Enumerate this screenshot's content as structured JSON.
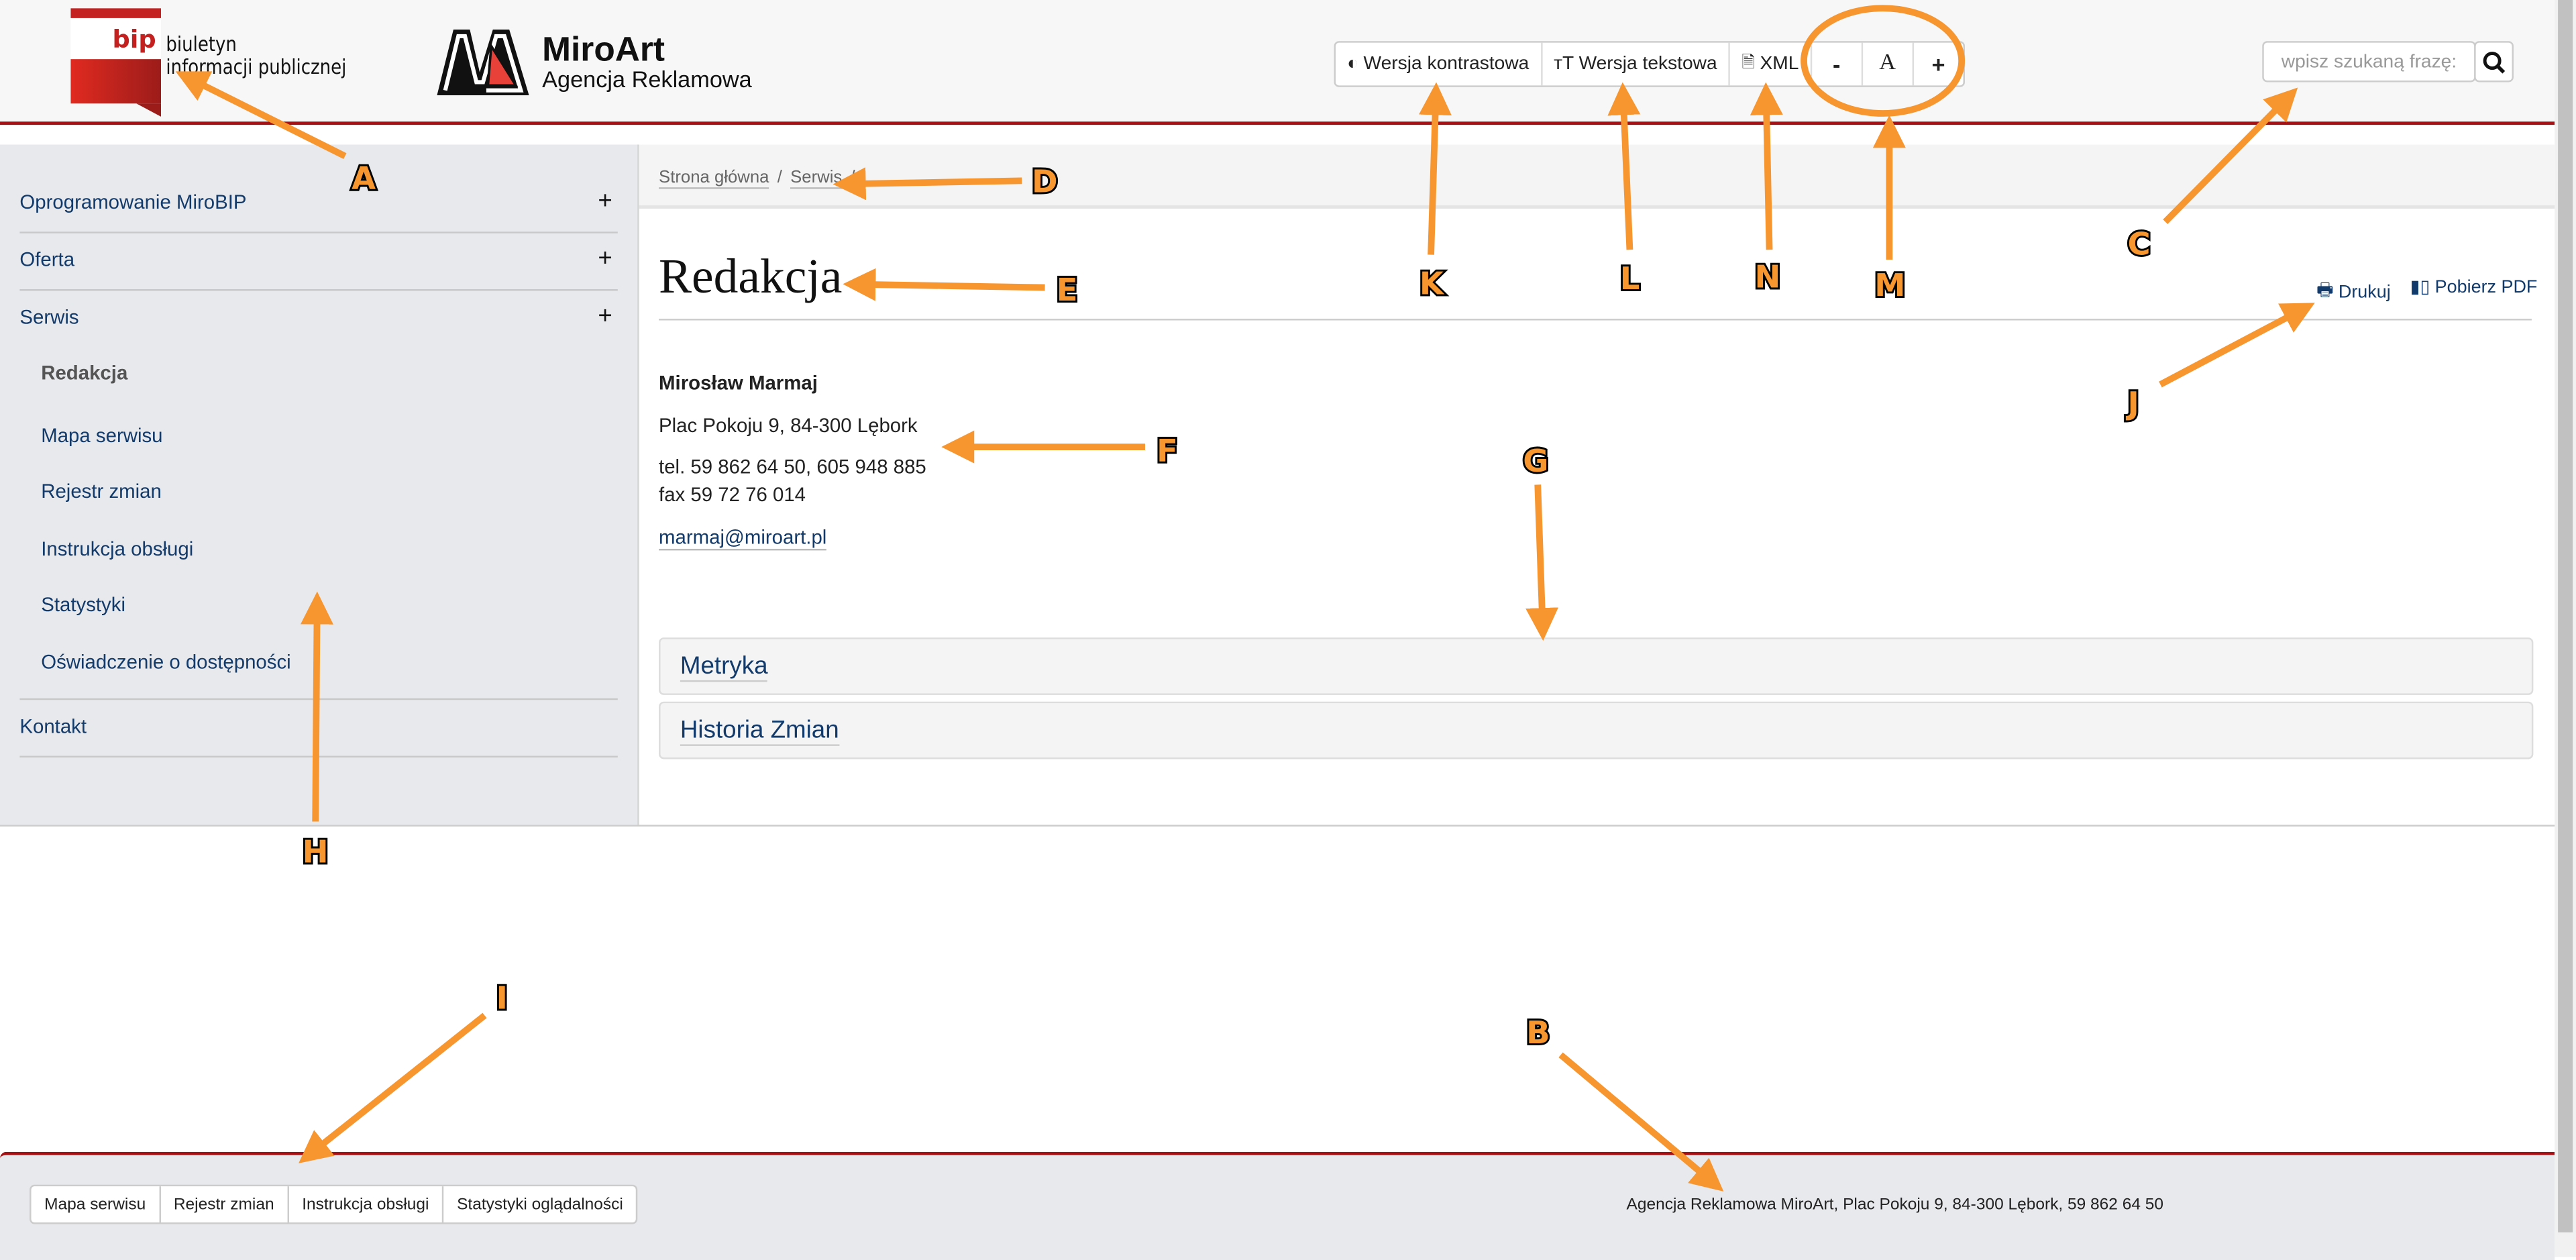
{
  "header": {
    "bip_line1": "biuletyn",
    "bip_line2": "informacji publicznej",
    "bip_logo": "bip",
    "brand_name": "MiroArt",
    "brand_sub": "Agencja Reklamowa",
    "toolbar": {
      "contrast": "Wersja kontrastowa",
      "text": "Wersja tekstowa",
      "xml": "XML",
      "font_minus": "-",
      "font_normal": "A",
      "font_plus": "+"
    },
    "search": {
      "placeholder": "wpisz szukaną frazę:"
    }
  },
  "sidebar": {
    "items": [
      {
        "label": "Oprogramowanie MiroBIP",
        "expand": "+"
      },
      {
        "label": "Oferta",
        "expand": "+"
      },
      {
        "label": "Serwis",
        "expand": "+"
      },
      {
        "label": "Kontakt"
      }
    ],
    "sub_items": [
      {
        "label": "Redakcja",
        "active": true
      },
      {
        "label": "Mapa serwisu"
      },
      {
        "label": "Rejestr zmian"
      },
      {
        "label": "Instrukcja obsługi"
      },
      {
        "label": "Statystyki"
      },
      {
        "label": "Oświadczenie o dostępności"
      }
    ]
  },
  "breadcrumb": {
    "items": [
      "Strona główna",
      "Serwis"
    ],
    "separator": "/"
  },
  "main": {
    "title": "Redakcja",
    "print": "Drukuj",
    "pdf": "Pobierz PDF",
    "name": "Mirosław Marmaj",
    "address": "Plac Pokoju 9, 84-300 Lębork",
    "tel": "tel. 59 862 64 50, 605 948 885",
    "fax": "fax 59 72 76 014",
    "email": "marmaj@miroart.pl",
    "panels": [
      "Metryka",
      "Historia Zmian"
    ]
  },
  "footer": {
    "links": [
      "Mapa serwisu",
      "Rejestr zmian",
      "Instrukcja obsługi",
      "Statystyki oglądalności"
    ],
    "text": "Agencja Reklamowa MiroArt, Plac Pokoju 9, 84-300 Lębork, 59 862 64 50"
  },
  "annotations": {
    "A": "A",
    "B": "B",
    "C": "C",
    "D": "D",
    "E": "E",
    "F": "F",
    "G": "G",
    "H": "H",
    "I": "I",
    "J": "J",
    "K": "K",
    "L": "L",
    "M": "M",
    "N": "N"
  },
  "colors": {
    "accent_red": "#a51114",
    "link": "#123a6b",
    "annotation": "#f7952f"
  }
}
